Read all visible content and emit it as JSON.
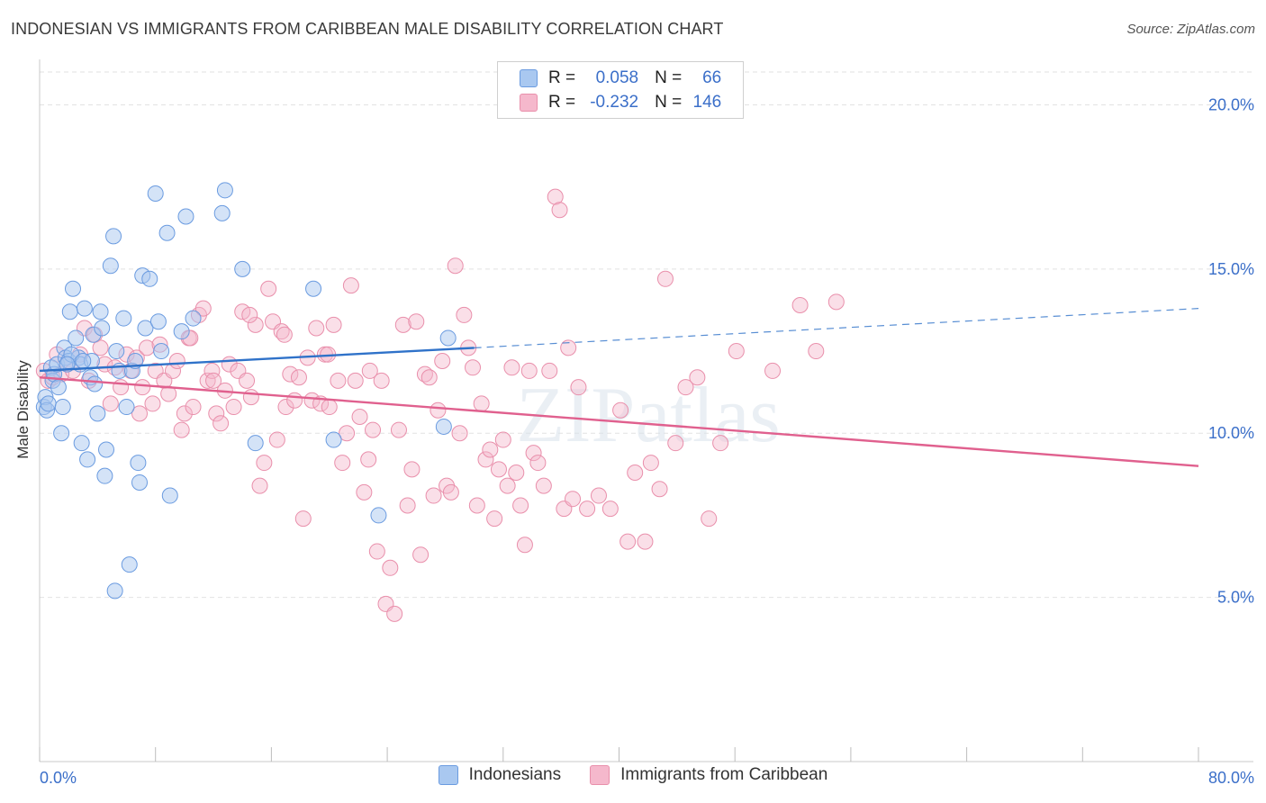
{
  "title": "INDONESIAN VS IMMIGRANTS FROM CARIBBEAN MALE DISABILITY CORRELATION CHART",
  "source": "Source: ZipAtlas.com",
  "watermark": "ZIPatlas",
  "legend": {
    "rows": [
      {
        "r_label": "R =",
        "r_value": "0.058",
        "n_label": "N =",
        "n_value": "66"
      },
      {
        "r_label": "R =",
        "r_value": "-0.232",
        "n_label": "N =",
        "n_value": "146"
      }
    ]
  },
  "colors": {
    "blue_fill": "#a9c8f0",
    "blue_stroke": "#6a9be0",
    "blue_line": "#2f72c9",
    "pink_fill": "#f5b8cc",
    "pink_stroke": "#e98fab",
    "pink_line": "#e0608e",
    "axis_text": "#3b6fc9",
    "grid": "#e2e2e2"
  },
  "chart_data": {
    "type": "scatter",
    "title": "INDONESIAN VS IMMIGRANTS FROM CARIBBEAN MALE DISABILITY CORRELATION CHART",
    "xlabel": "",
    "ylabel": "Male Disability",
    "xlim": [
      0,
      80
    ],
    "ylim": [
      0,
      21
    ],
    "x_tick_labels": [
      "0.0%",
      "80.0%"
    ],
    "y_ticks": [
      5,
      10,
      15,
      20
    ],
    "y_tick_labels": [
      "5.0%",
      "10.0%",
      "15.0%",
      "20.0%"
    ],
    "grid": true,
    "legend_position": "top-center",
    "series": [
      {
        "name": "Indonesians",
        "r": 0.058,
        "n": 66,
        "trend": {
          "x_solid": [
            0,
            30
          ],
          "y_solid": [
            11.9,
            12.6
          ],
          "x_dashed": [
            30,
            80
          ],
          "y_dashed": [
            12.6,
            13.8
          ]
        },
        "points": [
          [
            0.3,
            10.8
          ],
          [
            0.4,
            11.1
          ],
          [
            0.5,
            10.7
          ],
          [
            0.6,
            10.9
          ],
          [
            0.8,
            12.0
          ],
          [
            0.9,
            11.6
          ],
          [
            1.0,
            11.8
          ],
          [
            1.2,
            12.1
          ],
          [
            1.3,
            11.4
          ],
          [
            1.5,
            10.0
          ],
          [
            1.6,
            10.8
          ],
          [
            1.7,
            12.6
          ],
          [
            1.8,
            12.3
          ],
          [
            2.0,
            12.2
          ],
          [
            2.1,
            13.7
          ],
          [
            2.3,
            14.4
          ],
          [
            2.5,
            12.9
          ],
          [
            2.7,
            12.3
          ],
          [
            2.8,
            12.1
          ],
          [
            2.9,
            9.7
          ],
          [
            3.1,
            13.8
          ],
          [
            3.3,
            9.2
          ],
          [
            3.5,
            11.7
          ],
          [
            3.7,
            13.0
          ],
          [
            3.8,
            11.5
          ],
          [
            4.0,
            10.6
          ],
          [
            4.2,
            13.7
          ],
          [
            4.3,
            13.2
          ],
          [
            4.5,
            8.7
          ],
          [
            4.6,
            9.5
          ],
          [
            4.9,
            15.1
          ],
          [
            5.1,
            16.0
          ],
          [
            5.3,
            12.5
          ],
          [
            5.5,
            11.9
          ],
          [
            5.8,
            13.5
          ],
          [
            6.0,
            10.8
          ],
          [
            6.2,
            6.0
          ],
          [
            6.4,
            11.9
          ],
          [
            6.6,
            12.2
          ],
          [
            6.8,
            9.1
          ],
          [
            6.9,
            8.5
          ],
          [
            7.1,
            14.8
          ],
          [
            7.3,
            13.2
          ],
          [
            7.6,
            14.7
          ],
          [
            8.0,
            17.3
          ],
          [
            8.2,
            13.4
          ],
          [
            8.4,
            12.5
          ],
          [
            8.8,
            16.1
          ],
          [
            9.0,
            8.1
          ],
          [
            9.8,
            13.1
          ],
          [
            10.1,
            16.6
          ],
          [
            10.6,
            13.5
          ],
          [
            12.6,
            16.7
          ],
          [
            12.8,
            17.4
          ],
          [
            14.0,
            15.0
          ],
          [
            14.9,
            9.7
          ],
          [
            18.9,
            14.4
          ],
          [
            20.3,
            9.8
          ],
          [
            23.4,
            7.5
          ],
          [
            27.9,
            10.2
          ],
          [
            28.2,
            12.9
          ],
          [
            5.2,
            5.2
          ],
          [
            3.6,
            12.2
          ],
          [
            2.2,
            12.4
          ],
          [
            1.9,
            12.1
          ],
          [
            3.0,
            12.2
          ]
        ]
      },
      {
        "name": "Immigrants from Caribbean",
        "r": -0.232,
        "n": 146,
        "trend": {
          "x_solid": [
            0,
            80
          ],
          "y_solid": [
            11.7,
            9.0
          ]
        },
        "points": [
          [
            0.3,
            11.9
          ],
          [
            0.6,
            11.6
          ],
          [
            0.9,
            11.7
          ],
          [
            1.2,
            12.4
          ],
          [
            1.5,
            11.8
          ],
          [
            1.9,
            12.1
          ],
          [
            2.3,
            11.9
          ],
          [
            2.8,
            12.4
          ],
          [
            3.1,
            13.2
          ],
          [
            3.4,
            11.6
          ],
          [
            3.8,
            13.0
          ],
          [
            4.2,
            12.6
          ],
          [
            4.5,
            12.1
          ],
          [
            4.9,
            10.9
          ],
          [
            5.2,
            12.0
          ],
          [
            5.6,
            11.4
          ],
          [
            6.0,
            12.4
          ],
          [
            6.3,
            11.9
          ],
          [
            6.7,
            12.3
          ],
          [
            6.9,
            10.6
          ],
          [
            7.1,
            11.4
          ],
          [
            7.4,
            12.6
          ],
          [
            7.8,
            10.9
          ],
          [
            8.0,
            11.9
          ],
          [
            8.3,
            12.7
          ],
          [
            8.6,
            11.6
          ],
          [
            8.9,
            11.2
          ],
          [
            9.2,
            11.9
          ],
          [
            9.5,
            12.2
          ],
          [
            9.8,
            10.1
          ],
          [
            10.0,
            10.6
          ],
          [
            10.3,
            12.9
          ],
          [
            10.6,
            10.8
          ],
          [
            11.0,
            13.6
          ],
          [
            11.3,
            13.8
          ],
          [
            11.6,
            11.6
          ],
          [
            11.9,
            11.9
          ],
          [
            12.2,
            10.6
          ],
          [
            12.5,
            10.3
          ],
          [
            12.8,
            11.3
          ],
          [
            13.1,
            12.1
          ],
          [
            13.4,
            10.8
          ],
          [
            13.7,
            11.9
          ],
          [
            14.0,
            13.7
          ],
          [
            14.3,
            11.6
          ],
          [
            14.6,
            11.1
          ],
          [
            14.9,
            13.3
          ],
          [
            15.2,
            8.4
          ],
          [
            15.5,
            9.1
          ],
          [
            15.8,
            14.4
          ],
          [
            16.1,
            13.4
          ],
          [
            16.4,
            9.8
          ],
          [
            16.7,
            13.1
          ],
          [
            17.0,
            10.8
          ],
          [
            17.3,
            11.8
          ],
          [
            17.6,
            11.0
          ],
          [
            17.9,
            11.7
          ],
          [
            18.2,
            7.4
          ],
          [
            18.5,
            12.3
          ],
          [
            18.8,
            11.0
          ],
          [
            19.1,
            13.2
          ],
          [
            19.4,
            10.9
          ],
          [
            19.7,
            12.4
          ],
          [
            20.0,
            10.8
          ],
          [
            20.3,
            13.3
          ],
          [
            20.6,
            11.6
          ],
          [
            20.9,
            9.1
          ],
          [
            21.2,
            10.0
          ],
          [
            21.5,
            14.5
          ],
          [
            21.8,
            11.6
          ],
          [
            22.1,
            10.5
          ],
          [
            22.4,
            8.2
          ],
          [
            22.7,
            9.2
          ],
          [
            23.0,
            10.1
          ],
          [
            23.3,
            6.4
          ],
          [
            23.6,
            11.6
          ],
          [
            23.9,
            4.8
          ],
          [
            24.2,
            5.9
          ],
          [
            24.5,
            4.5
          ],
          [
            24.8,
            10.1
          ],
          [
            25.1,
            13.3
          ],
          [
            25.4,
            7.8
          ],
          [
            25.7,
            8.9
          ],
          [
            26.0,
            13.4
          ],
          [
            26.3,
            6.3
          ],
          [
            26.6,
            11.8
          ],
          [
            26.9,
            11.7
          ],
          [
            27.2,
            8.1
          ],
          [
            27.5,
            10.7
          ],
          [
            27.8,
            12.2
          ],
          [
            28.1,
            8.4
          ],
          [
            28.4,
            8.2
          ],
          [
            28.7,
            15.1
          ],
          [
            29.0,
            10.0
          ],
          [
            29.3,
            13.6
          ],
          [
            29.6,
            12.6
          ],
          [
            29.9,
            12.0
          ],
          [
            30.2,
            7.8
          ],
          [
            30.5,
            10.9
          ],
          [
            30.8,
            9.2
          ],
          [
            31.1,
            9.5
          ],
          [
            31.4,
            7.4
          ],
          [
            31.7,
            8.9
          ],
          [
            32.0,
            9.8
          ],
          [
            32.3,
            8.4
          ],
          [
            32.6,
            12.0
          ],
          [
            32.9,
            8.8
          ],
          [
            33.2,
            7.8
          ],
          [
            33.5,
            6.6
          ],
          [
            33.8,
            11.9
          ],
          [
            34.1,
            9.4
          ],
          [
            34.4,
            9.1
          ],
          [
            34.8,
            8.4
          ],
          [
            35.2,
            11.9
          ],
          [
            35.6,
            17.2
          ],
          [
            35.9,
            16.8
          ],
          [
            36.2,
            7.7
          ],
          [
            36.5,
            12.6
          ],
          [
            36.8,
            8.0
          ],
          [
            37.2,
            11.4
          ],
          [
            37.8,
            7.7
          ],
          [
            38.6,
            8.1
          ],
          [
            39.4,
            7.7
          ],
          [
            40.1,
            10.7
          ],
          [
            40.6,
            6.7
          ],
          [
            41.1,
            8.8
          ],
          [
            41.8,
            6.7
          ],
          [
            42.2,
            9.1
          ],
          [
            42.8,
            8.3
          ],
          [
            43.2,
            14.7
          ],
          [
            43.9,
            9.7
          ],
          [
            44.6,
            11.4
          ],
          [
            45.4,
            11.7
          ],
          [
            46.2,
            7.4
          ],
          [
            47.0,
            9.7
          ],
          [
            48.1,
            12.5
          ],
          [
            50.6,
            11.9
          ],
          [
            52.5,
            13.9
          ],
          [
            53.6,
            12.5
          ],
          [
            55.0,
            14.0
          ],
          [
            10.4,
            12.9
          ],
          [
            12.0,
            11.6
          ],
          [
            14.5,
            13.6
          ],
          [
            16.9,
            13.0
          ],
          [
            19.9,
            12.4
          ],
          [
            22.8,
            11.9
          ]
        ]
      }
    ]
  }
}
